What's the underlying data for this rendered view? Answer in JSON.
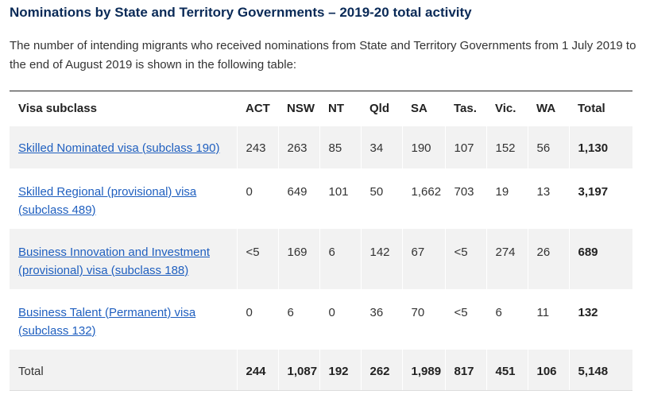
{
  "heading": "Nominations by State and Territory Governments – 2019-20 total activity",
  "intro": "The number of intending migrants who received nominations from State and Territory Governments from 1 July 2019 to the end of August 2019 is shown in the following table:",
  "table": {
    "headers": [
      "Visa subclass",
      "ACT",
      "NSW",
      "NT",
      "Qld",
      "SA",
      "Tas.",
      "Vic.",
      "WA",
      "Total"
    ],
    "rows": [
      {
        "visa": "Skilled Nominated visa (subclass 190)",
        "values": [
          "243",
          "263",
          "85",
          "34",
          "190",
          "107",
          "152",
          "56",
          "1,130"
        ]
      },
      {
        "visa": "Skilled Regional (provisional) visa (subclass 489)",
        "values": [
          "0",
          "649",
          "101",
          "50",
          "1,662",
          "703",
          "19",
          "13",
          "3,197"
        ]
      },
      {
        "visa": "Business Innovation and Investment (provisional) visa (subclass 188)",
        "values": [
          "<5",
          "169",
          "6",
          "142",
          "67",
          "<5",
          "274",
          "26",
          "689"
        ]
      },
      {
        "visa": "Business Talent (Permanent) visa (subclass 132)",
        "values": [
          "0",
          "6",
          "0",
          "36",
          "70",
          "<5",
          "6",
          "11",
          "132"
        ]
      }
    ],
    "total_row": {
      "label": "Total",
      "values": [
        "244",
        "1,087",
        "192",
        "262",
        "1,989",
        "817",
        "451",
        "106",
        "5,148"
      ]
    }
  }
}
